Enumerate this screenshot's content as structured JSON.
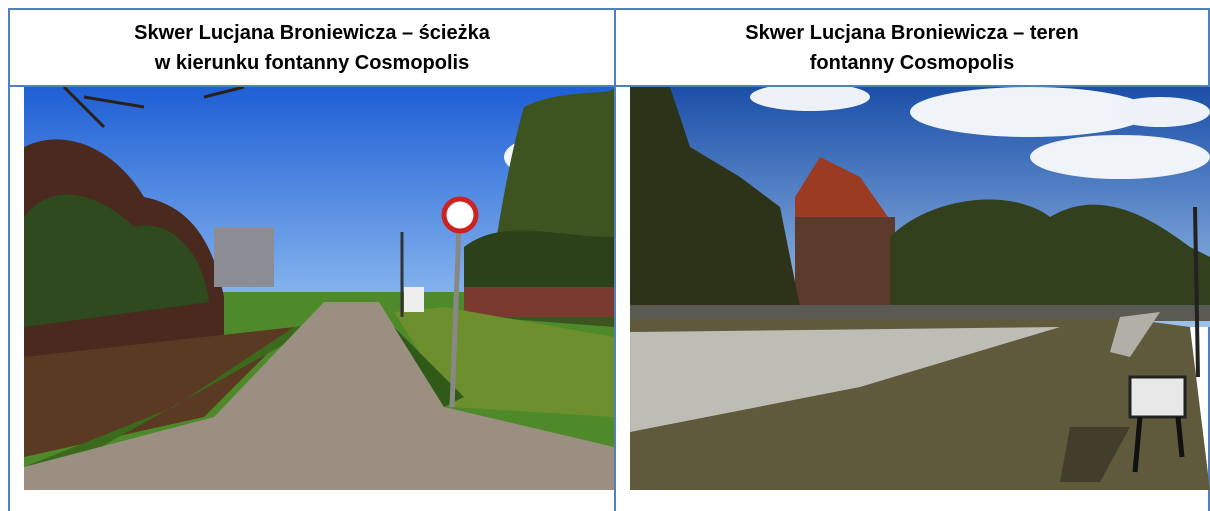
{
  "table": {
    "headers": [
      {
        "lines": [
          "Skwer Lucjana Broniewicza – ścieżka",
          "w kierunku fontanny Cosmopolis"
        ]
      },
      {
        "lines": [
          "Skwer Lucjana Broniewicza – teren",
          "fontanny Cosmopolis"
        ]
      }
    ]
  }
}
